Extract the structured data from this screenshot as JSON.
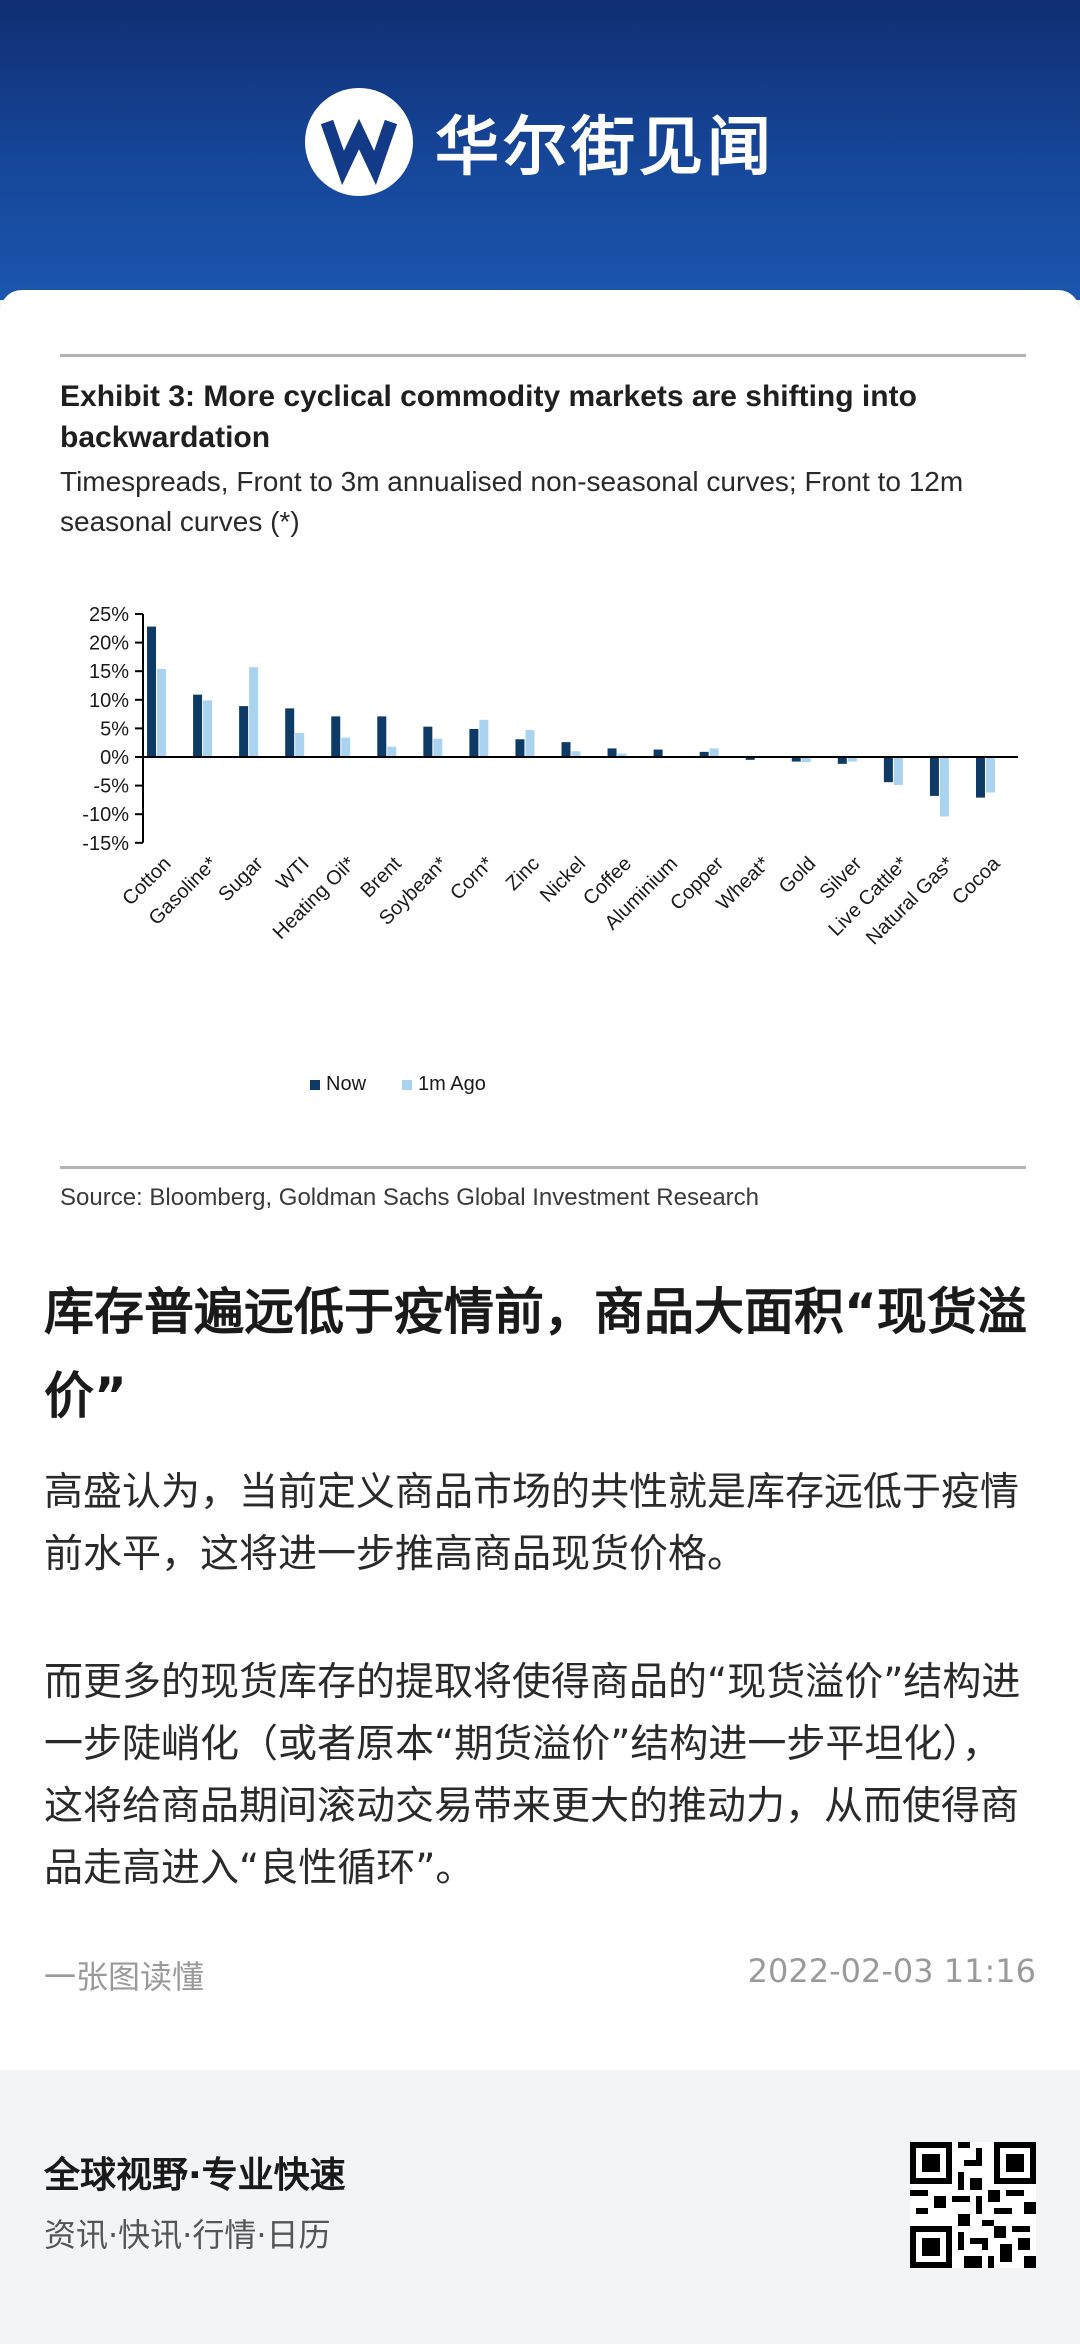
{
  "header": {
    "brand_name": "华尔街见闻",
    "logo_icon": "wallstreetcn-logo-icon"
  },
  "exhibit": {
    "title": "Exhibit 3: More cyclical commodity markets are shifting into backwardation",
    "subtitle": "Timespreads, Front to 3m annualised non-seasonal curves; Front to 12m seasonal curves (*)",
    "source": "Source: Bloomberg, Goldman Sachs Global Investment Research"
  },
  "chart_data": {
    "type": "bar",
    "categories": [
      "Cotton",
      "Gasoline*",
      "Sugar",
      "WTI",
      "Heating Oil*",
      "Brent",
      "Soybean*",
      "Corn*",
      "Zinc",
      "Nickel",
      "Coffee",
      "Aluminium",
      "Copper",
      "Wheat*",
      "Gold",
      "Silver",
      "Live Cattle*",
      "Natural Gas*",
      "Cocoa"
    ],
    "series": [
      {
        "name": "Now",
        "color": "#0d3b66",
        "values": [
          22.8,
          10.9,
          8.9,
          8.5,
          7.1,
          7.1,
          5.3,
          4.9,
          3.1,
          2.6,
          1.5,
          1.3,
          0.9,
          -0.5,
          -0.8,
          -1.2,
          -4.4,
          -6.8,
          -7.1
        ]
      },
      {
        "name": "1m Ago",
        "color": "#a9d3ef",
        "values": [
          15.4,
          9.9,
          15.7,
          4.2,
          3.4,
          1.8,
          3.2,
          6.5,
          4.7,
          1.0,
          0.6,
          0.1,
          1.5,
          -0.2,
          -0.9,
          -0.8,
          -4.9,
          -10.4,
          -6.2
        ]
      }
    ],
    "ylim": [
      -15,
      25
    ],
    "yticks": [
      "-15%",
      "-10%",
      "-5%",
      "0%",
      "5%",
      "10%",
      "15%",
      "20%",
      "25%"
    ],
    "legend_position": "bottom"
  },
  "article": {
    "headline": "库存普遍远低于疫情前，商品大面积“现货溢价”",
    "para1": "高盛认为，当前定义商品市场的共性就是库存远低于疫情前水平，这将进一步推高商品现货价格。",
    "para2": "而更多的现货库存的提取将使得商品的“现货溢价”结构进一步陡峭化（或者原本“期货溢价”结构进一步平坦化），这将给商品期间滚动交易带来更大的推动力，从而使得商品走高进入“良性循环”。",
    "section_tag": "一张图读懂",
    "timestamp": "2022-02-03 11:16"
  },
  "footer": {
    "slogan": "全球视野·专业快速",
    "links": "资讯·快讯·行情·日历",
    "qr_icon": "qr-code-icon"
  }
}
